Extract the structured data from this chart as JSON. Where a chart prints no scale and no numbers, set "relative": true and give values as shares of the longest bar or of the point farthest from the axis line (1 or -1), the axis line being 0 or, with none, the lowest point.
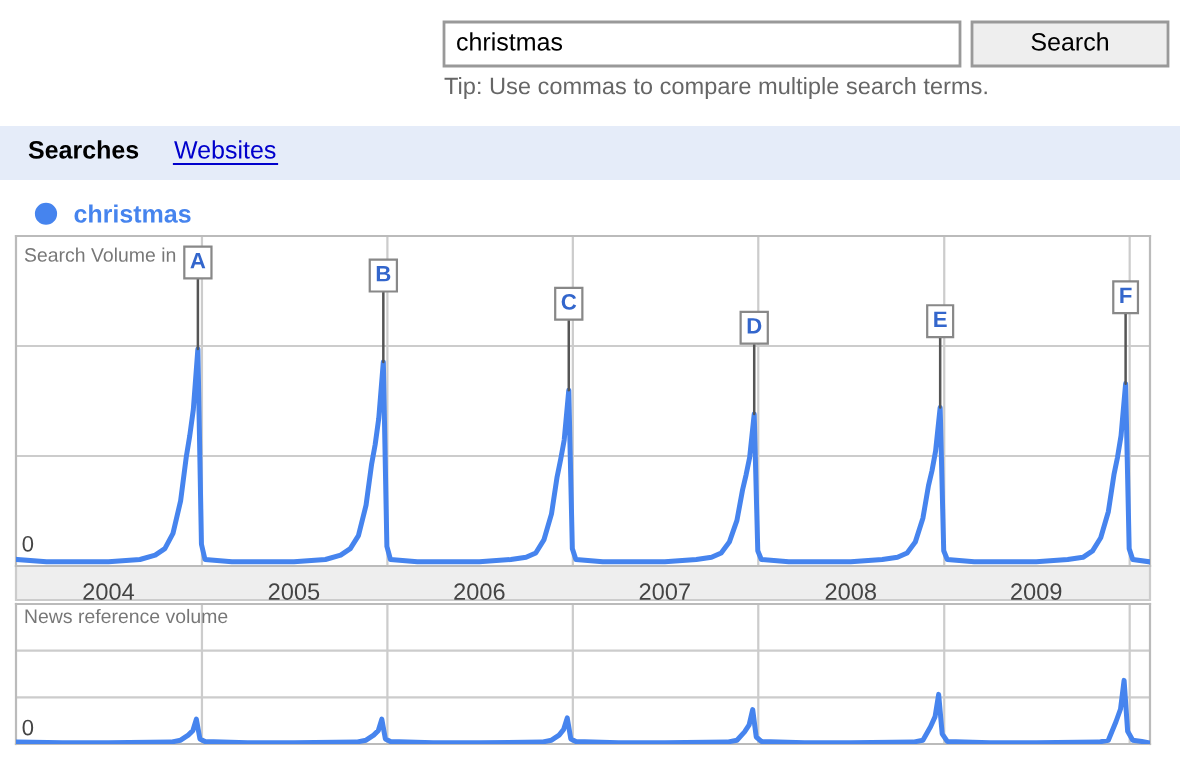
{
  "chart_data": [
    {
      "type": "line",
      "relative": true,
      "ylabel": "Search Volume in",
      "legend": "top left",
      "grid": true,
      "tick_labels": "x",
      "xlim": [
        "2004-01-01",
        "2010-02-10"
      ],
      "xticks": [
        {
          "value": "2004-07-01",
          "label": "2004"
        },
        {
          "value": "2005-01-01",
          "label": null
        },
        {
          "value": "2005-07-01",
          "label": "2005"
        },
        {
          "value": "2006-01-01",
          "label": null
        },
        {
          "value": "2006-07-01",
          "label": "2006"
        },
        {
          "value": "2007-01-01",
          "label": null
        },
        {
          "value": "2007-07-01",
          "label": "2007"
        },
        {
          "value": "2008-01-01",
          "label": null
        },
        {
          "value": "2008-07-01",
          "label": "2008"
        },
        {
          "value": "2009-01-01",
          "label": null
        },
        {
          "value": "2009-07-01",
          "label": "2009"
        },
        {
          "value": "2010-01-01",
          "label": null
        }
      ],
      "annotations": [
        "0",
        {
          "text": "A",
          "x": "2004-12-24",
          "y": 1
        },
        {
          "text": "B",
          "x": "2005-12-24",
          "y": 0.94
        },
        {
          "text": "C",
          "x": "2006-12-24",
          "y": 0.81
        },
        {
          "text": "D",
          "x": "2007-12-24",
          "y": 0.7
        },
        {
          "text": "E",
          "x": "2008-12-24",
          "y": 0.73
        },
        {
          "text": "F",
          "x": "2009-12-24",
          "y": 0.84
        }
      ],
      "series": [
        {
          "name": "christmas",
          "color": "#4684ee",
          "x": [
            "2004-01-04",
            "2004-03-01",
            "2004-05-01",
            "2004-07-01",
            "2004-09-01",
            "2004-10-01",
            "2004-10-20",
            "2004-11-05",
            "2004-11-20",
            "2004-12-01",
            "2004-12-08",
            "2004-12-15",
            "2004-12-24",
            "2004-12-31",
            "2005-01-07",
            "2005-03-01",
            "2005-05-01",
            "2005-07-01",
            "2005-09-01",
            "2005-10-01",
            "2005-10-20",
            "2005-11-05",
            "2005-11-20",
            "2005-12-01",
            "2005-12-08",
            "2005-12-15",
            "2005-12-24",
            "2005-12-31",
            "2006-01-07",
            "2006-03-01",
            "2006-05-01",
            "2006-07-01",
            "2006-09-01",
            "2006-10-01",
            "2006-10-20",
            "2006-11-05",
            "2006-11-20",
            "2006-12-01",
            "2006-12-08",
            "2006-12-15",
            "2006-12-24",
            "2006-12-31",
            "2007-01-07",
            "2007-03-01",
            "2007-05-01",
            "2007-07-01",
            "2007-09-01",
            "2007-10-01",
            "2007-10-20",
            "2007-11-05",
            "2007-11-20",
            "2007-12-01",
            "2007-12-08",
            "2007-12-15",
            "2007-12-24",
            "2007-12-31",
            "2008-01-07",
            "2008-03-01",
            "2008-05-01",
            "2008-07-01",
            "2008-09-01",
            "2008-10-01",
            "2008-10-20",
            "2008-11-05",
            "2008-11-20",
            "2008-12-01",
            "2008-12-08",
            "2008-12-15",
            "2008-12-24",
            "2008-12-31",
            "2009-01-07",
            "2009-03-01",
            "2009-05-01",
            "2009-07-01",
            "2009-09-01",
            "2009-10-01",
            "2009-10-20",
            "2009-11-05",
            "2009-11-20",
            "2009-12-01",
            "2009-12-08",
            "2009-12-15",
            "2009-12-24",
            "2009-12-31",
            "2010-01-07",
            "2010-02-07"
          ],
          "values": [
            0.03,
            0.02,
            0.02,
            0.02,
            0.03,
            0.05,
            0.08,
            0.15,
            0.3,
            0.5,
            0.6,
            0.72,
            1,
            0.1,
            0.03,
            0.02,
            0.02,
            0.02,
            0.03,
            0.05,
            0.08,
            0.14,
            0.28,
            0.47,
            0.56,
            0.68,
            0.94,
            0.09,
            0.03,
            0.02,
            0.02,
            0.02,
            0.03,
            0.04,
            0.06,
            0.12,
            0.24,
            0.41,
            0.49,
            0.58,
            0.81,
            0.08,
            0.03,
            0.02,
            0.02,
            0.02,
            0.03,
            0.04,
            0.06,
            0.11,
            0.21,
            0.35,
            0.42,
            0.5,
            0.7,
            0.07,
            0.03,
            0.02,
            0.02,
            0.02,
            0.03,
            0.04,
            0.06,
            0.11,
            0.22,
            0.37,
            0.44,
            0.53,
            0.73,
            0.07,
            0.03,
            0.02,
            0.02,
            0.02,
            0.03,
            0.04,
            0.07,
            0.13,
            0.25,
            0.42,
            0.5,
            0.6,
            0.84,
            0.08,
            0.03,
            0.02
          ]
        }
      ]
    },
    {
      "type": "line",
      "relative": true,
      "ylabel": "News reference volume",
      "grid": true,
      "tick_labels": false,
      "xlim": [
        "2004-01-01",
        "2010-02-10"
      ],
      "xticks": [
        {
          "value": "2005-01-01",
          "label": null
        },
        {
          "value": "2006-01-01",
          "label": null
        },
        {
          "value": "2007-01-01",
          "label": null
        },
        {
          "value": "2008-01-01",
          "label": null
        },
        {
          "value": "2009-01-01",
          "label": null
        },
        {
          "value": "2010-01-01",
          "label": null
        }
      ],
      "annotations": [
        "0"
      ],
      "series": [
        {
          "color": "#4684ee",
          "x": [
            "2004-01-04",
            "2004-04-01",
            "2004-07-01",
            "2004-11-01",
            "2004-11-20",
            "2004-12-05",
            "2004-12-14",
            "2004-12-21",
            "2004-12-28",
            "2005-01-07",
            "2005-04-01",
            "2005-07-01",
            "2005-11-01",
            "2005-11-20",
            "2005-12-05",
            "2005-12-14",
            "2005-12-21",
            "2005-12-28",
            "2006-01-07",
            "2006-04-01",
            "2006-07-01",
            "2006-11-01",
            "2006-11-20",
            "2006-12-05",
            "2006-12-14",
            "2006-12-21",
            "2006-12-28",
            "2007-01-07",
            "2007-04-01",
            "2007-07-01",
            "2007-11-01",
            "2007-11-20",
            "2007-12-05",
            "2007-12-14",
            "2007-12-21",
            "2007-12-28",
            "2008-01-07",
            "2008-04-01",
            "2008-07-01",
            "2008-11-01",
            "2008-11-20",
            "2008-12-05",
            "2008-12-14",
            "2008-12-21",
            "2008-12-28",
            "2009-01-07",
            "2009-04-01",
            "2009-07-01",
            "2009-11-01",
            "2009-11-20",
            "2009-12-05",
            "2009-12-14",
            "2009-12-21",
            "2009-12-28",
            "2010-01-07",
            "2010-01-25",
            "2010-02-07"
          ],
          "values": [
            0.03,
            0.02,
            0.02,
            0.03,
            0.06,
            0.14,
            0.21,
            0.39,
            0.08,
            0.04,
            0.02,
            0.02,
            0.03,
            0.06,
            0.14,
            0.21,
            0.39,
            0.08,
            0.04,
            0.02,
            0.02,
            0.03,
            0.06,
            0.14,
            0.23,
            0.41,
            0.08,
            0.04,
            0.02,
            0.02,
            0.03,
            0.06,
            0.19,
            0.3,
            0.54,
            0.11,
            0.04,
            0.02,
            0.02,
            0.03,
            0.06,
            0.27,
            0.43,
            0.78,
            0.16,
            0.04,
            0.02,
            0.02,
            0.03,
            0.06,
            0.35,
            0.55,
            1,
            0.2,
            0.06,
            0.04,
            0.02
          ]
        }
      ]
    },
    {
      "type": "other",
      "annotations": [
        "christmas",
        "Search",
        "Tip: Use commas to compare multiple search terms.",
        "Searches",
        "Websites"
      ]
    }
  ]
}
